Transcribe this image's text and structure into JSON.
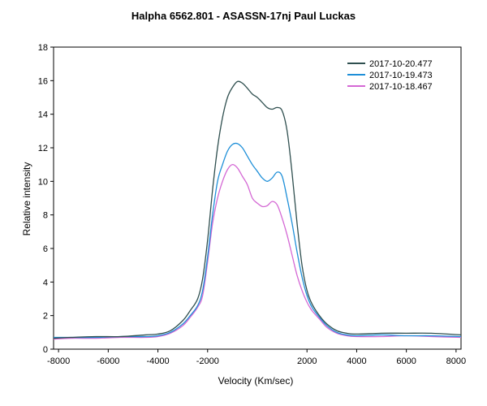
{
  "chart_data": {
    "type": "line",
    "title": "Halpha 6562.801 - ASASSN-17nj   Paul Luckas",
    "xlabel": "Velocity (Km/sec)",
    "ylabel": "Relative intensity",
    "xlim": [
      -8200,
      8200
    ],
    "ylim": [
      0,
      18
    ],
    "xticks": [
      -8000,
      -6000,
      -4000,
      -2000,
      2000,
      4000,
      6000,
      8000
    ],
    "yticks": [
      0,
      2,
      4,
      6,
      8,
      10,
      12,
      14,
      16,
      18
    ],
    "grid": false,
    "legend_position": "top-right",
    "series": [
      {
        "name": "2017-10-20.477",
        "color": "#2f4f4f",
        "x": [
          -8200,
          -7500,
          -6500,
          -5500,
          -4500,
          -4000,
          -3500,
          -3000,
          -2700,
          -2400,
          -2200,
          -2000,
          -1800,
          -1600,
          -1400,
          -1200,
          -1000,
          -800,
          -600,
          -400,
          -200,
          0,
          200,
          400,
          600,
          800,
          1000,
          1200,
          1400,
          1600,
          1800,
          2000,
          2200,
          2500,
          2800,
          3200,
          3600,
          4000,
          5000,
          6000,
          7000,
          8200
        ],
        "y": [
          0.65,
          0.7,
          0.75,
          0.75,
          0.85,
          0.9,
          1.1,
          1.7,
          2.3,
          3.0,
          4.2,
          6.5,
          9.5,
          12.0,
          13.8,
          15.0,
          15.6,
          15.95,
          15.85,
          15.55,
          15.2,
          15.0,
          14.7,
          14.4,
          14.3,
          14.4,
          14.2,
          13.0,
          10.5,
          7.5,
          5.0,
          3.5,
          2.7,
          2.0,
          1.5,
          1.1,
          0.95,
          0.9,
          0.95,
          0.95,
          0.95,
          0.85
        ]
      },
      {
        "name": "2017-10-19.473",
        "color": "#1e8fd8",
        "x": [
          -8200,
          -7500,
          -6500,
          -5500,
          -4500,
          -4000,
          -3500,
          -3000,
          -2700,
          -2400,
          -2200,
          -2000,
          -1800,
          -1600,
          -1400,
          -1200,
          -1000,
          -800,
          -600,
          -400,
          -200,
          0,
          200,
          400,
          600,
          800,
          1000,
          1200,
          1400,
          1600,
          1800,
          2000,
          2200,
          2500,
          2800,
          3200,
          3600,
          4000,
          5000,
          6000,
          7000,
          8200
        ],
        "y": [
          0.7,
          0.7,
          0.7,
          0.75,
          0.75,
          0.8,
          1.0,
          1.5,
          2.0,
          2.6,
          3.5,
          5.5,
          8.0,
          10.0,
          11.0,
          11.8,
          12.2,
          12.25,
          12.0,
          11.5,
          11.0,
          10.6,
          10.2,
          10.0,
          10.2,
          10.55,
          10.3,
          9.0,
          7.5,
          5.8,
          4.3,
          3.2,
          2.5,
          1.9,
          1.4,
          1.0,
          0.85,
          0.8,
          0.85,
          0.8,
          0.8,
          0.75
        ]
      },
      {
        "name": "2017-10-18.467",
        "color": "#d468d4",
        "x": [
          -8200,
          -7500,
          -6500,
          -5500,
          -4500,
          -4000,
          -3500,
          -3000,
          -2700,
          -2400,
          -2200,
          -2000,
          -1800,
          -1600,
          -1400,
          -1200,
          -1000,
          -800,
          -600,
          -400,
          -200,
          0,
          200,
          400,
          600,
          800,
          1000,
          1200,
          1400,
          1600,
          1800,
          2000,
          2200,
          2500,
          2800,
          3200,
          3600,
          4000,
          5000,
          6000,
          7000,
          8200
        ],
        "y": [
          0.6,
          0.65,
          0.65,
          0.7,
          0.7,
          0.75,
          0.95,
          1.4,
          1.9,
          2.5,
          3.2,
          5.2,
          7.5,
          9.0,
          10.0,
          10.7,
          11.0,
          10.8,
          10.3,
          9.8,
          9.0,
          8.7,
          8.5,
          8.55,
          8.8,
          8.6,
          7.8,
          6.8,
          5.6,
          4.4,
          3.5,
          2.8,
          2.3,
          1.8,
          1.3,
          0.95,
          0.8,
          0.75,
          0.75,
          0.8,
          0.75,
          0.7
        ]
      }
    ]
  }
}
